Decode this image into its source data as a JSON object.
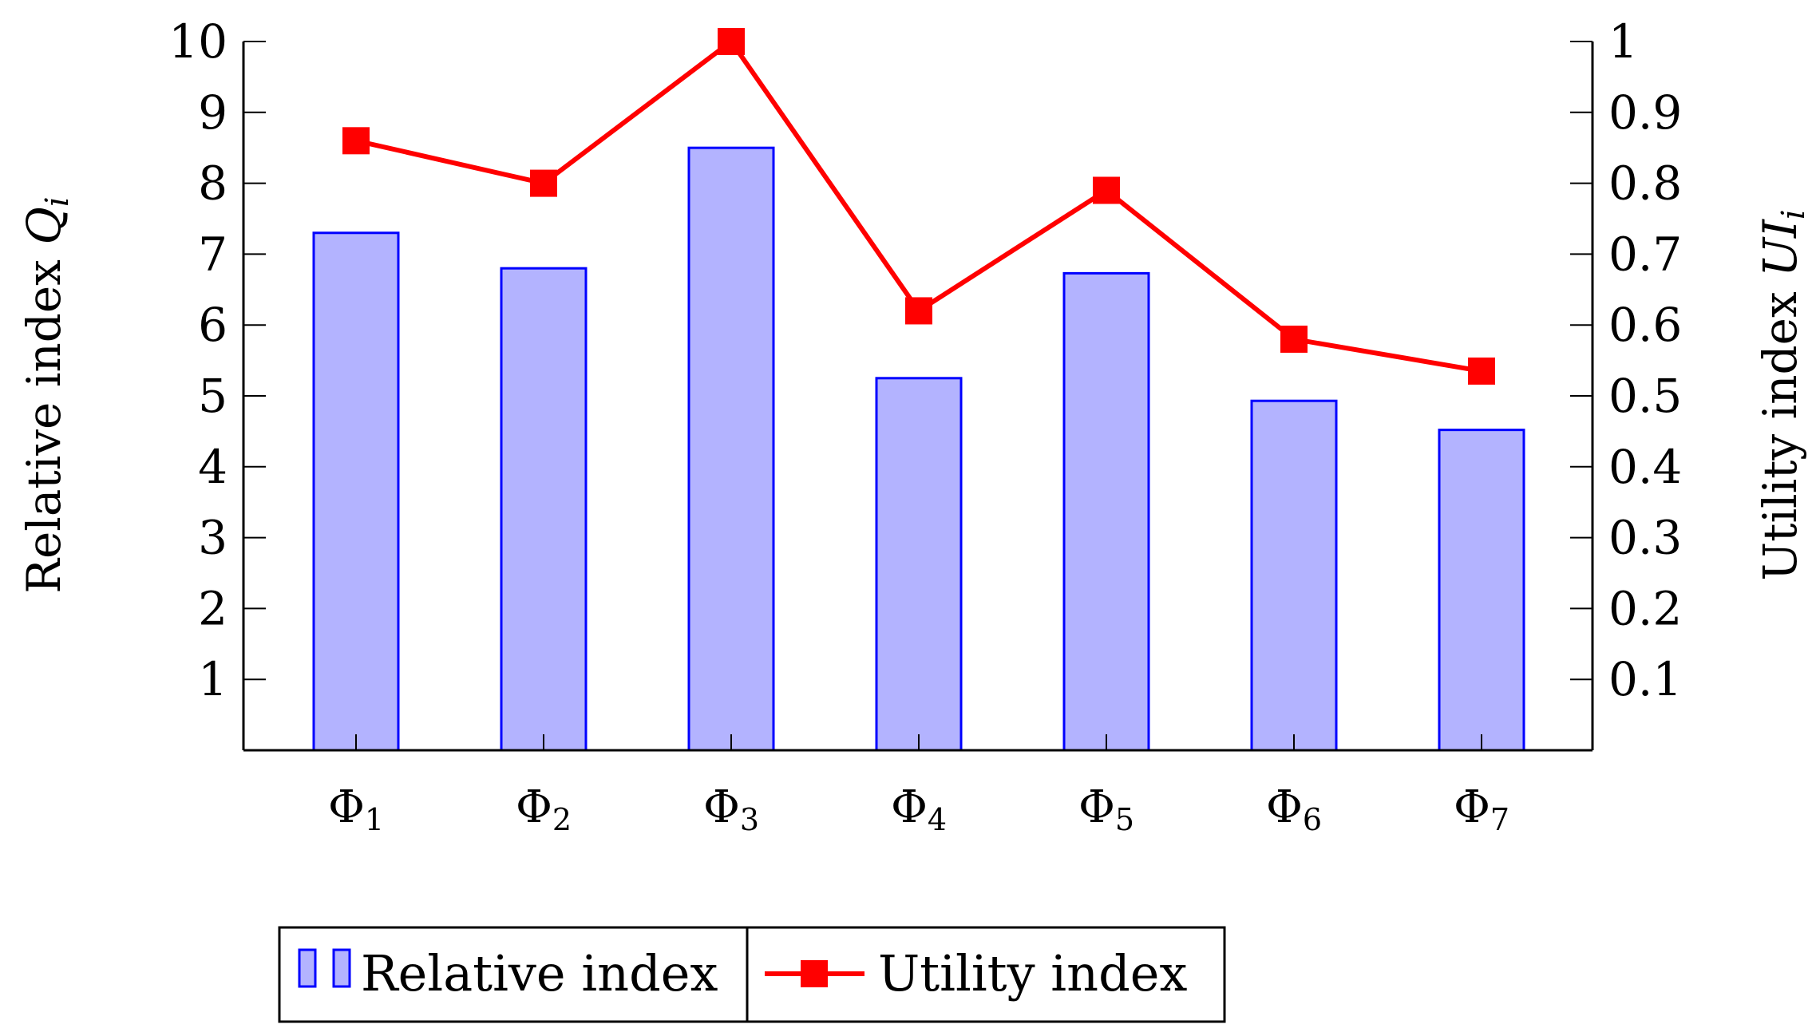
{
  "chart_data": {
    "type": "bar+line",
    "categories": [
      "Φ1",
      "Φ2",
      "Φ3",
      "Φ4",
      "Φ5",
      "Φ6",
      "Φ7"
    ],
    "category_labels": [
      {
        "base": "Φ",
        "sub": "1"
      },
      {
        "base": "Φ",
        "sub": "2"
      },
      {
        "base": "Φ",
        "sub": "3"
      },
      {
        "base": "Φ",
        "sub": "4"
      },
      {
        "base": "Φ",
        "sub": "5"
      },
      {
        "base": "Φ",
        "sub": "6"
      },
      {
        "base": "Φ",
        "sub": "7"
      }
    ],
    "series": [
      {
        "name": "Relative index",
        "kind": "bar",
        "axis": "left",
        "values": [
          7.3,
          6.8,
          8.5,
          5.25,
          6.73,
          4.93,
          4.52
        ],
        "fill": "#b3b3ff",
        "stroke": "#0000ff"
      },
      {
        "name": "Utility index",
        "kind": "line",
        "axis": "right",
        "marker": "square",
        "values": [
          0.86,
          0.8,
          1.0,
          0.62,
          0.79,
          0.58,
          0.535
        ],
        "color": "#ff0000"
      }
    ],
    "left_axis": {
      "label_text": "Relative index ",
      "label_math": "Q",
      "label_sub": "i",
      "ylim": [
        0,
        10
      ],
      "ticks": [
        "1",
        "2",
        "3",
        "4",
        "5",
        "6",
        "7",
        "8",
        "9",
        "10"
      ]
    },
    "right_axis": {
      "label_text": "Utility index ",
      "label_math": "UI",
      "label_sub": "i",
      "ylim": [
        0,
        1
      ],
      "ticks": [
        "0.1",
        "0.2",
        "0.3",
        "0.4",
        "0.5",
        "0.6",
        "0.7",
        "0.8",
        "0.9",
        "1"
      ]
    },
    "legend": {
      "placement": "bottom-center",
      "entries": [
        "Relative index",
        "Utility index"
      ]
    },
    "grid": false
  }
}
